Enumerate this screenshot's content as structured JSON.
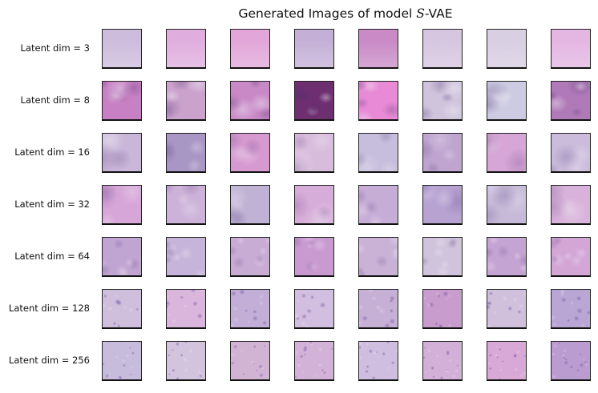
{
  "figure": {
    "title_prefix": "Generated Images of model ",
    "title_model": "S",
    "title_suffix": "-VAE"
  },
  "rows": [
    {
      "label": "Latent dim = 3",
      "latent_dim": 3,
      "texture": "smooth"
    },
    {
      "label": "Latent dim = 8",
      "latent_dim": 8,
      "texture": "blocky"
    },
    {
      "label": "Latent dim = 16",
      "latent_dim": 16,
      "texture": "blobs"
    },
    {
      "label": "Latent dim = 32",
      "latent_dim": 32,
      "texture": "blobs"
    },
    {
      "label": "Latent dim = 64",
      "latent_dim": 64,
      "texture": "cellular"
    },
    {
      "label": "Latent dim = 128",
      "latent_dim": 128,
      "texture": "nuclei"
    },
    {
      "label": "Latent dim = 256",
      "latent_dim": 256,
      "texture": "fine-nuclei"
    }
  ],
  "columns_per_row": 8,
  "tile_base_colors": [
    [
      "#cdbcdc",
      "#e0aede",
      "#e2a6d8",
      "#c4b0d6",
      "#c98ac6",
      "#d6c6e0",
      "#d8cfe2",
      "#e4b6e2"
    ],
    [
      "#c880c4",
      "#caa2cc",
      "#c889c6",
      "#6e2f70",
      "#e88ad6",
      "#cfc4dc",
      "#cdcbe2",
      "#b07ab8"
    ],
    [
      "#c9b6d8",
      "#a897c4",
      "#d69ad0",
      "#d8bcdc",
      "#c6bedc",
      "#bea4cf",
      "#d6a6d6",
      "#cbbcdc"
    ],
    [
      "#d6a6d8",
      "#ccb2d8",
      "#bfb2d4",
      "#d6acd8",
      "#c6add6",
      "#b7a2d2",
      "#c6bad8",
      "#d8b2da"
    ],
    [
      "#c0a4d2",
      "#c7b4da",
      "#c9acd4",
      "#c99ad0",
      "#c9b2d6",
      "#d0c4dc",
      "#c4a4d2",
      "#d3a6d6"
    ],
    [
      "#cfbedc",
      "#dab6dc",
      "#c2aed6",
      "#d2bede",
      "#c7b0d6",
      "#c89ccc",
      "#d0c0dc",
      "#b9a6d4"
    ],
    [
      "#c7bcdc",
      "#d3c4de",
      "#d1b4d4",
      "#d3b2d8",
      "#cfbee0",
      "#d2b0d8",
      "#d8a8d6",
      "#bb9cd0"
    ]
  ]
}
